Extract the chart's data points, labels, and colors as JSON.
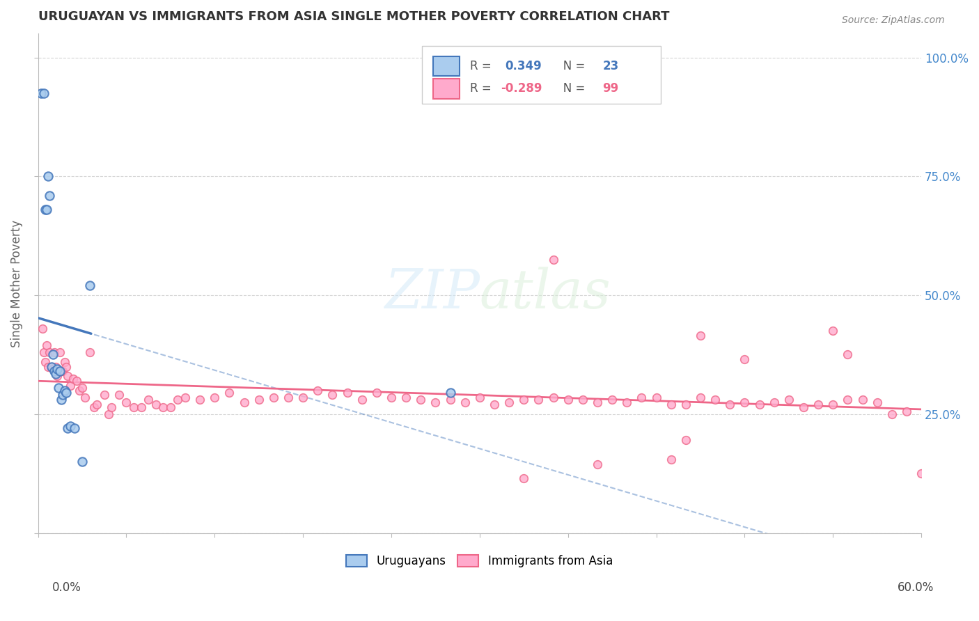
{
  "title": "URUGUAYAN VS IMMIGRANTS FROM ASIA SINGLE MOTHER POVERTY CORRELATION CHART",
  "source": "Source: ZipAtlas.com",
  "ylabel": "Single Mother Poverty",
  "xlim": [
    0.0,
    0.6
  ],
  "ylim": [
    0.0,
    1.05
  ],
  "blue_color": "#4477BB",
  "blue_face": "#AACCEE",
  "pink_color": "#EE6688",
  "pink_face": "#FFAACC",
  "watermark_text": "ZIPatlas",
  "watermark_color": "#DDEEFF",
  "legend_text1_gray": "R =  ",
  "legend_val1_blue": "0.349",
  "legend_n1_gray": "   N = ",
  "legend_n1_blue": "23",
  "legend_text2_gray": "R = ",
  "legend_val2_pink": "-0.289",
  "legend_n2_gray": "   N = ",
  "legend_n2_pink": "99",
  "blue_x": [
    0.002,
    0.004,
    0.005,
    0.006,
    0.007,
    0.008,
    0.009,
    0.01,
    0.011,
    0.012,
    0.013,
    0.014,
    0.015,
    0.016,
    0.017,
    0.018,
    0.019,
    0.02,
    0.022,
    0.025,
    0.03,
    0.035,
    0.28
  ],
  "blue_y": [
    0.925,
    0.925,
    0.68,
    0.68,
    0.75,
    0.71,
    0.35,
    0.375,
    0.34,
    0.335,
    0.345,
    0.305,
    0.34,
    0.28,
    0.29,
    0.3,
    0.295,
    0.22,
    0.225,
    0.22,
    0.15,
    0.52,
    0.295
  ],
  "pink_x": [
    0.003,
    0.004,
    0.005,
    0.006,
    0.007,
    0.008,
    0.009,
    0.01,
    0.011,
    0.012,
    0.013,
    0.014,
    0.015,
    0.016,
    0.017,
    0.018,
    0.019,
    0.02,
    0.022,
    0.024,
    0.026,
    0.028,
    0.03,
    0.032,
    0.035,
    0.038,
    0.04,
    0.045,
    0.048,
    0.05,
    0.055,
    0.06,
    0.065,
    0.07,
    0.075,
    0.08,
    0.085,
    0.09,
    0.095,
    0.1,
    0.11,
    0.12,
    0.13,
    0.14,
    0.15,
    0.16,
    0.17,
    0.18,
    0.19,
    0.2,
    0.21,
    0.22,
    0.23,
    0.24,
    0.25,
    0.26,
    0.27,
    0.28,
    0.29,
    0.3,
    0.31,
    0.32,
    0.33,
    0.34,
    0.35,
    0.36,
    0.37,
    0.38,
    0.39,
    0.4,
    0.41,
    0.42,
    0.43,
    0.44,
    0.45,
    0.46,
    0.47,
    0.48,
    0.49,
    0.5,
    0.51,
    0.52,
    0.53,
    0.54,
    0.55,
    0.56,
    0.57,
    0.58,
    0.59,
    0.35,
    0.45,
    0.54,
    0.43,
    0.55,
    0.38,
    0.6,
    0.48,
    0.33,
    0.44
  ],
  "pink_y": [
    0.43,
    0.38,
    0.36,
    0.395,
    0.35,
    0.38,
    0.35,
    0.345,
    0.38,
    0.35,
    0.33,
    0.34,
    0.38,
    0.34,
    0.34,
    0.36,
    0.35,
    0.33,
    0.31,
    0.325,
    0.32,
    0.3,
    0.305,
    0.285,
    0.38,
    0.265,
    0.27,
    0.29,
    0.25,
    0.265,
    0.29,
    0.275,
    0.265,
    0.265,
    0.28,
    0.27,
    0.265,
    0.265,
    0.28,
    0.285,
    0.28,
    0.285,
    0.295,
    0.275,
    0.28,
    0.285,
    0.285,
    0.285,
    0.3,
    0.29,
    0.295,
    0.28,
    0.295,
    0.285,
    0.285,
    0.28,
    0.275,
    0.28,
    0.275,
    0.285,
    0.27,
    0.275,
    0.28,
    0.28,
    0.285,
    0.28,
    0.28,
    0.275,
    0.28,
    0.275,
    0.285,
    0.285,
    0.27,
    0.27,
    0.285,
    0.28,
    0.27,
    0.275,
    0.27,
    0.275,
    0.28,
    0.265,
    0.27,
    0.27,
    0.28,
    0.28,
    0.275,
    0.25,
    0.255,
    0.575,
    0.415,
    0.425,
    0.155,
    0.375,
    0.145,
    0.125,
    0.365,
    0.115,
    0.195
  ]
}
